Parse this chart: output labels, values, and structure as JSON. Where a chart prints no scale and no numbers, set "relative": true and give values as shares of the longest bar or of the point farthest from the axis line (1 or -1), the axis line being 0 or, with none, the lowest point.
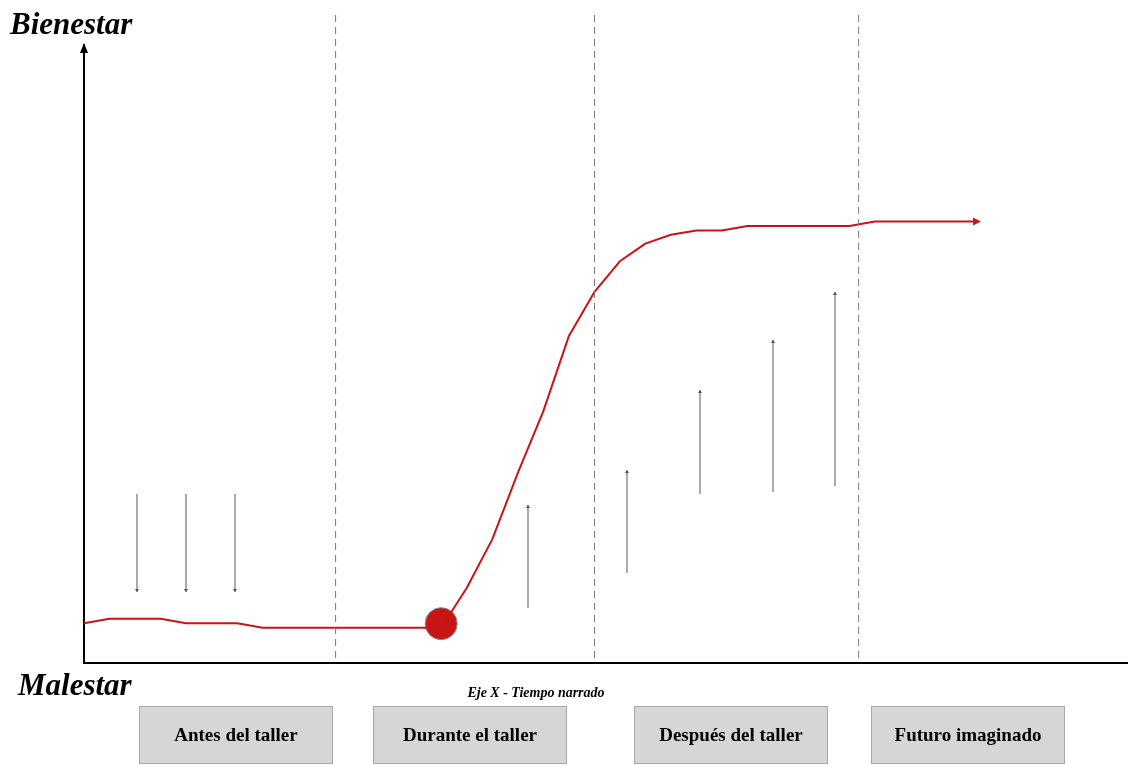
{
  "chart_data": {
    "type": "line",
    "relative": true,
    "xlabel": "Eje X - Tiempo narrado",
    "annotations": [
      "Bienestar",
      "Malestar",
      "Antes del taller",
      "Durante el taller",
      "Después del taller",
      "Futuro imaginado"
    ],
    "categories": [
      null,
      null,
      null,
      null,
      null,
      null,
      null,
      null,
      null,
      null,
      null,
      null,
      null,
      null,
      null,
      null,
      null,
      null,
      null,
      null,
      null,
      null,
      null,
      null,
      null,
      null,
      null,
      null,
      null,
      null,
      null,
      null,
      null,
      null,
      null,
      null
    ],
    "series": [
      {
        "color": "#c81414",
        "values": [
          0.09,
          0.1,
          0.1,
          0.1,
          0.09,
          0.09,
          0.09,
          0.08,
          0.08,
          0.08,
          0.08,
          0.08,
          0.08,
          0.08,
          0.08,
          0.17,
          0.28,
          0.43,
          0.57,
          0.74,
          0.84,
          0.91,
          0.95,
          0.97,
          0.98,
          0.98,
          0.99,
          0.99,
          0.99,
          0.99,
          0.99,
          1,
          1,
          1,
          1,
          1
        ]
      }
    ],
    "marker": "none",
    "grid": false
  }
}
